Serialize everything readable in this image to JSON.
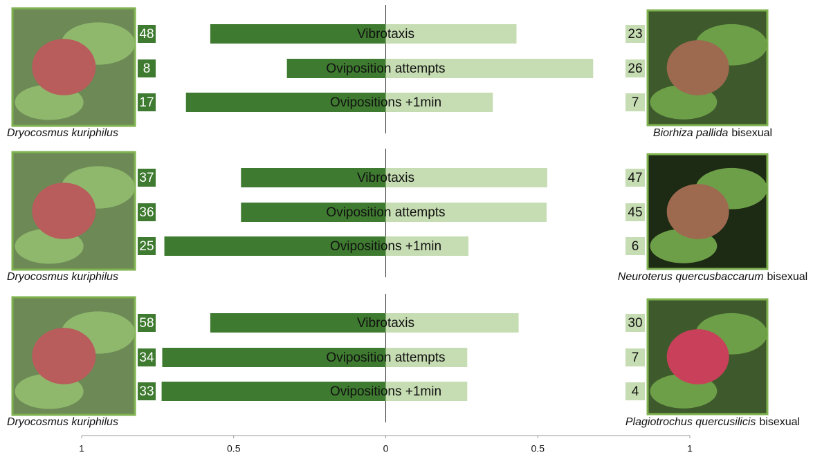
{
  "chart_data": [
    {
      "type": "bar",
      "categories": [
        "Vibrotaxis",
        "Oviposition attempts",
        "Ovipositions +1min"
      ],
      "series": [
        {
          "name": "Dryocosmus kuriphilus",
          "color": "#3e7a2f",
          "values": [
            -0.577,
            -0.325,
            -0.657
          ],
          "counts": [
            "48",
            "8",
            "17"
          ]
        },
        {
          "name": "Biorhiza pallida",
          "name_suffix": "bisexual",
          "color": "#c6dcb2",
          "values": [
            0.43,
            0.682,
            0.352
          ],
          "counts": [
            "23",
            "26",
            "7"
          ]
        }
      ]
    },
    {
      "type": "bar",
      "categories": [
        "Vibrotaxis",
        "Oviposition attempts",
        "Ovipositions +1min"
      ],
      "series": [
        {
          "name": "Dryocosmus kuriphilus",
          "color": "#3e7a2f",
          "values": [
            -0.476,
            -0.476,
            -0.728
          ],
          "counts": [
            "37",
            "36",
            "25"
          ]
        },
        {
          "name": "Neuroterus quercusbaccarum",
          "name_suffix": "bisexual",
          "color": "#c6dcb2",
          "values": [
            0.531,
            0.529,
            0.272
          ],
          "counts": [
            "47",
            "45",
            "6"
          ]
        }
      ]
    },
    {
      "type": "bar",
      "categories": [
        "Vibrotaxis",
        "Oviposition attempts",
        "Ovipositions +1min"
      ],
      "series": [
        {
          "name": "Dryocosmus kuriphilus",
          "color": "#3e7a2f",
          "values": [
            -0.577,
            -0.735,
            -0.737
          ],
          "counts": [
            "58",
            "34",
            "33"
          ]
        },
        {
          "name": "Plagiotrochus quercusilicis",
          "name_suffix": "bisexual",
          "color": "#c6dcb2",
          "values": [
            0.437,
            0.268,
            0.268
          ],
          "counts": [
            "30",
            "7",
            "4"
          ]
        }
      ],
      "xlim": [
        -1,
        1
      ],
      "xticks": [
        {
          "value": -1,
          "label": "1"
        },
        {
          "value": -0.5,
          "label": "0.5"
        },
        0,
        0.5,
        1
      ]
    }
  ]
}
